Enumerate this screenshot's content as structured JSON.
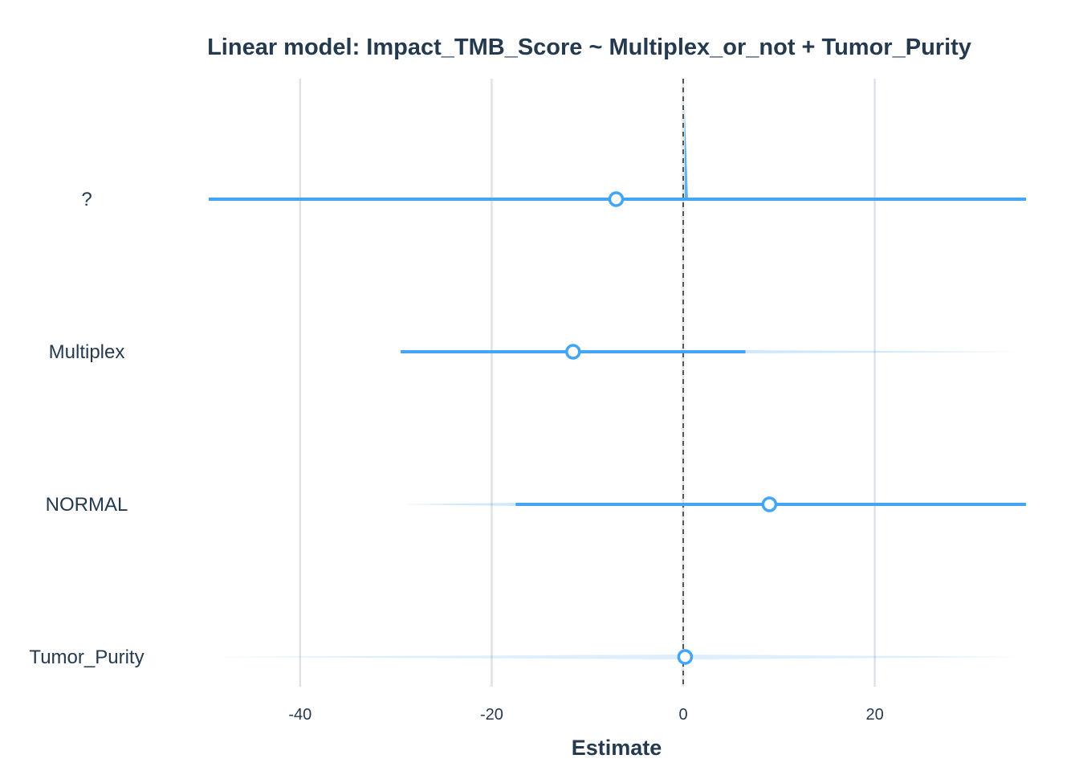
{
  "chart_data": {
    "type": "forest",
    "title": "Linear model: Impact_TMB_Score ~ Multiplex_or_not + Tumor_Purity",
    "xlabel": "Estimate",
    "ylabel": "",
    "xlim": [
      -50,
      36
    ],
    "x_ticks": [
      -40,
      -20,
      0,
      20
    ],
    "x_tick_labels": [
      "-40",
      "-20",
      "0",
      "20"
    ],
    "reference_line": 0,
    "grid": "vertical major gridlines",
    "color": "#42a5f5",
    "terms": [
      {
        "label": "?",
        "estimate": -7,
        "ci_low": -50,
        "ci_high": 36
      },
      {
        "label": "Multiplex",
        "estimate": -11.5,
        "ci_low": -29.5,
        "ci_high": 6.5
      },
      {
        "label": "NORMAL",
        "estimate": 9,
        "ci_low": -17.5,
        "ci_high": 36
      },
      {
        "label": "Tumor_Purity",
        "estimate": 0.2,
        "ci_low": 0.1,
        "ci_high": 0.3
      }
    ]
  }
}
